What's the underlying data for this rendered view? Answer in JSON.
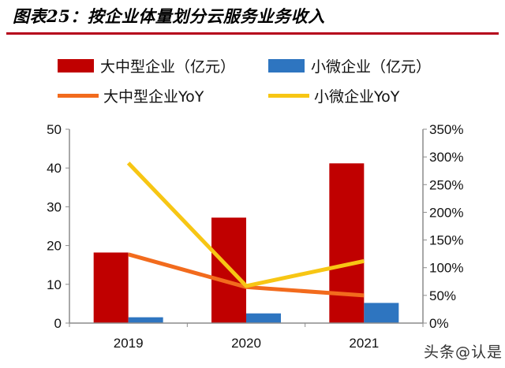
{
  "title": "图表25：按企业体量划分云服务业务收入",
  "watermark": "头条@认是",
  "colors": {
    "title_rule": "#b5001b",
    "large_bar": "#c00000",
    "small_bar": "#2e75c0",
    "large_yoy": "#f26b1d",
    "small_yoy": "#f7c614"
  },
  "legend": [
    {
      "label": "大中型企业（亿元）",
      "kind": "bar",
      "color": "#c00000"
    },
    {
      "label": "小微企业（亿元）",
      "kind": "bar",
      "color": "#2e75c0"
    },
    {
      "label": "大中型企业YoY",
      "kind": "line",
      "color": "#f26b1d"
    },
    {
      "label": "小微企业YoY",
      "kind": "line",
      "color": "#f7c614"
    }
  ],
  "chart_data": {
    "type": "bar",
    "title": "图表25：按企业体量划分云服务业务收入",
    "categories": [
      "2019",
      "2020",
      "2021"
    ],
    "series": [
      {
        "name": "大中型企业（亿元）",
        "type": "bar",
        "axis": "left",
        "color": "#c00000",
        "values": [
          18.2,
          27.2,
          41.2
        ]
      },
      {
        "name": "小微企业（亿元）",
        "type": "bar",
        "axis": "left",
        "color": "#2e75c0",
        "values": [
          1.5,
          2.5,
          5.2
        ]
      },
      {
        "name": "大中型企业YoY",
        "type": "line",
        "axis": "right",
        "color": "#f26b1d",
        "values": [
          124,
          65,
          50
        ]
      },
      {
        "name": "小微企业YoY",
        "type": "line",
        "axis": "right",
        "color": "#f7c614",
        "values": [
          289,
          67,
          112
        ]
      }
    ],
    "y_left": {
      "min": 0,
      "max": 50,
      "ticks": [
        0,
        10,
        20,
        30,
        40,
        50
      ]
    },
    "y_right": {
      "min": 0,
      "max": 350,
      "ticks": [
        "0%",
        "50%",
        "100%",
        "150%",
        "200%",
        "250%",
        "300%",
        "350%"
      ]
    },
    "grid": false,
    "legend_position": "top"
  }
}
